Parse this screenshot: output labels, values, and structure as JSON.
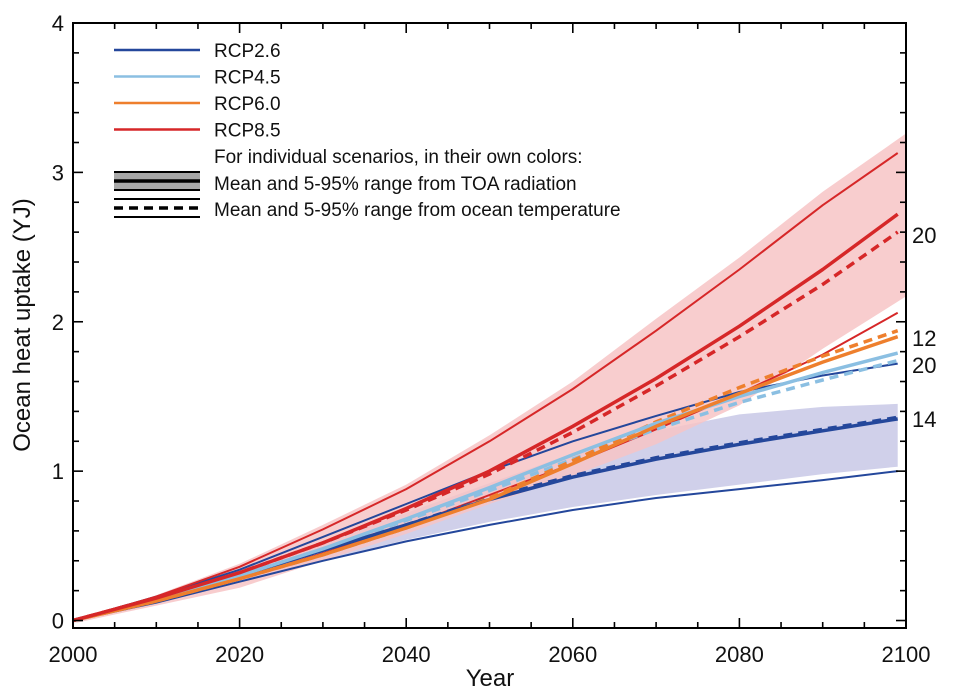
{
  "chart_data": {
    "type": "line",
    "title": "",
    "xlabel": "Year",
    "ylabel": "Ocean heat uptake (YJ)",
    "xlim": [
      2000,
      2100
    ],
    "ylim": [
      -0.05,
      4
    ],
    "xticks": [
      2000,
      2020,
      2040,
      2060,
      2080,
      2100
    ],
    "yticks": [
      0,
      1,
      2,
      3,
      4
    ],
    "grid": false,
    "legend_position": "top-left",
    "legend_note": "For individual scenarios, in their own colors:",
    "legend_styles": [
      {
        "name": "Mean and 5-95% range from TOA radiation",
        "style": "solid"
      },
      {
        "name": "Mean and 5-95% range from ocean temperature",
        "style": "dashed"
      }
    ],
    "series": [
      {
        "name": "RCP2.6",
        "color": "#24479b",
        "x": [
          2000,
          2010,
          2020,
          2030,
          2040,
          2050,
          2060,
          2070,
          2080,
          2090,
          2099
        ],
        "toa_mean": [
          0,
          0.14,
          0.3,
          0.47,
          0.64,
          0.81,
          0.96,
          1.08,
          1.18,
          1.27,
          1.35
        ],
        "toa_lower": [
          0,
          0.12,
          0.26,
          0.4,
          0.53,
          0.64,
          0.74,
          0.82,
          0.88,
          0.94,
          1.0
        ],
        "toa_upper": [
          0,
          0.16,
          0.34,
          0.56,
          0.78,
          1.0,
          1.2,
          1.37,
          1.53,
          1.64,
          1.72
        ],
        "ocean_mean": [
          0,
          0.14,
          0.3,
          0.47,
          0.64,
          0.82,
          0.97,
          1.09,
          1.19,
          1.28,
          1.36
        ],
        "band_color": "#c8c8e6",
        "band_x": [
          2000,
          2010,
          2020,
          2030,
          2040,
          2050,
          2060,
          2070,
          2080,
          2090,
          2099
        ],
        "band_lower": [
          0,
          0.12,
          0.26,
          0.4,
          0.54,
          0.66,
          0.76,
          0.84,
          0.91,
          0.98,
          1.03
        ],
        "band_upper": [
          0,
          0.16,
          0.34,
          0.53,
          0.72,
          0.92,
          1.12,
          1.27,
          1.38,
          1.43,
          1.45
        ]
      },
      {
        "name": "RCP4.5",
        "color": "#8bbfe2",
        "x": [
          2000,
          2010,
          2020,
          2030,
          2040,
          2050,
          2060,
          2070,
          2080,
          2090,
          2099
        ],
        "toa_mean": [
          0,
          0.14,
          0.3,
          0.48,
          0.68,
          0.89,
          1.11,
          1.32,
          1.5,
          1.66,
          1.79
        ],
        "ocean_mean": [
          0,
          0.14,
          0.3,
          0.48,
          0.67,
          0.87,
          1.08,
          1.28,
          1.46,
          1.61,
          1.74
        ]
      },
      {
        "name": "RCP6.0",
        "color": "#ee7f2d",
        "x": [
          2000,
          2010,
          2020,
          2030,
          2040,
          2050,
          2060,
          2070,
          2080,
          2090,
          2099
        ],
        "toa_mean": [
          0,
          0.13,
          0.28,
          0.44,
          0.62,
          0.81,
          1.05,
          1.3,
          1.52,
          1.73,
          1.9
        ],
        "ocean_mean": [
          0,
          0.13,
          0.28,
          0.44,
          0.62,
          0.82,
          1.07,
          1.33,
          1.56,
          1.77,
          1.94
        ]
      },
      {
        "name": "RCP8.5",
        "color": "#d62728",
        "x": [
          2000,
          2010,
          2020,
          2030,
          2040,
          2050,
          2060,
          2070,
          2080,
          2090,
          2099
        ],
        "toa_mean": [
          0,
          0.15,
          0.32,
          0.52,
          0.75,
          1.0,
          1.3,
          1.62,
          1.97,
          2.35,
          2.72
        ],
        "toa_lower": [
          0,
          0.14,
          0.28,
          0.45,
          0.63,
          0.84,
          1.05,
          1.28,
          1.52,
          1.78,
          2.06
        ],
        "toa_upper": [
          0,
          0.16,
          0.36,
          0.61,
          0.88,
          1.2,
          1.55,
          1.94,
          2.35,
          2.78,
          3.13
        ],
        "ocean_mean": [
          0,
          0.15,
          0.32,
          0.52,
          0.74,
          0.98,
          1.26,
          1.57,
          1.9,
          2.25,
          2.6
        ],
        "band_color": "#f7c4c6",
        "band_x": [
          2000,
          2010,
          2020,
          2030,
          2040,
          2050,
          2060,
          2070,
          2080,
          2090,
          2100
        ],
        "band_lower": [
          -0.02,
          0.1,
          0.22,
          0.4,
          0.58,
          0.78,
          0.97,
          1.18,
          1.44,
          1.82,
          2.17
        ],
        "band_upper": [
          -0.02,
          0.17,
          0.38,
          0.64,
          0.91,
          1.24,
          1.6,
          2.02,
          2.43,
          2.87,
          3.26
        ]
      }
    ],
    "right_labels": [
      {
        "text": "20",
        "series": "RCP8.5",
        "y": 2.58
      },
      {
        "text": "12",
        "series": "RCP6.0",
        "y": 1.89
      },
      {
        "text": "20",
        "series": "RCP4.5",
        "y": 1.71
      },
      {
        "text": "14",
        "series": "RCP2.6",
        "y": 1.35
      }
    ]
  }
}
